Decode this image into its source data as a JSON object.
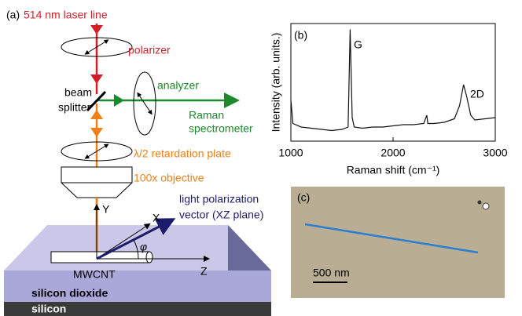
{
  "panel_a": {
    "label": "(a)",
    "laser": "514 nm laser line",
    "polarizer": "polarizer",
    "beam_splitter": [
      "beam",
      "splitter"
    ],
    "analyzer": "analyzer",
    "spectrometer": [
      "Raman",
      "spectrometer"
    ],
    "plate": "λ/2 retardation plate",
    "objective": "100x objective",
    "vector": [
      "light polarization",
      "vector (XZ plane)"
    ],
    "axis_y": "Y",
    "axis_x": "X",
    "axis_z": "Z",
    "angle": "φ",
    "tube": "MWCNT",
    "layer_top": "silicon dioxide",
    "layer_bottom": "silicon"
  },
  "chart_data": {
    "type": "line",
    "label": "(b)",
    "xlabel": "Raman shift (cm⁻¹)",
    "ylabel": "Intensity (arb. units.)",
    "annotations": [
      "G",
      "2D"
    ],
    "color": "#111111",
    "x": [
      1000,
      1020,
      1100,
      1200,
      1300,
      1400,
      1500,
      1560,
      1580,
      1600,
      1620,
      1700,
      1800,
      1900,
      2000,
      2100,
      2200,
      2300,
      2330,
      2340,
      2400,
      2500,
      2600,
      2650,
      2690,
      2720,
      2760,
      2800,
      2900,
      3000
    ],
    "values": [
      35,
      15,
      12,
      11,
      10,
      9,
      10,
      12,
      95,
      20,
      12,
      11,
      12,
      12,
      13,
      14,
      14,
      15,
      22,
      15,
      15,
      16,
      19,
      30,
      48,
      38,
      22,
      18,
      19,
      20
    ],
    "xlim": [
      1000,
      3000
    ],
    "ylim": [
      0,
      100
    ],
    "xticks": [
      1000,
      2000,
      3000
    ]
  },
  "panel_c": {
    "label": "(c)",
    "scale": "500 nm"
  }
}
